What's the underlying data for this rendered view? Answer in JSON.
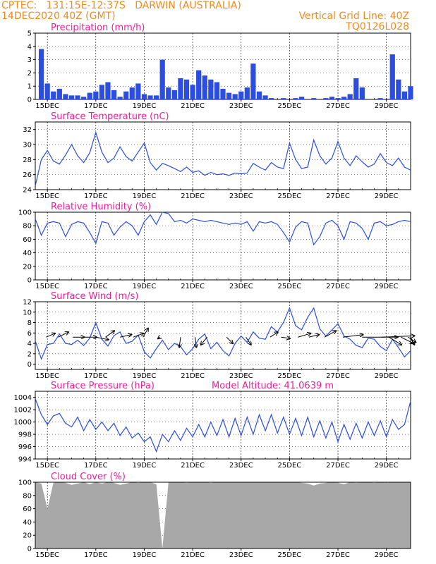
{
  "header": {
    "line1_left": "CPTEC:   131:15E-12:37S   DARWIN (AUSTRALIA)",
    "line2_left": "14DEC2020 40Z (GMT)",
    "line2_right": "Vertical Grid Line: 40Z",
    "line3_right": "TQ0126L028"
  },
  "colors": {
    "header_text": "#f08a24",
    "panel_title": "#ee1e9a",
    "series_line": "#2b4de0",
    "cloud_fill": "#a8a8a8",
    "arrow": "#000000"
  },
  "chart_data": [
    {
      "id": "precipitation",
      "type": "bar",
      "title": "Precipitation (mm/h)",
      "ylim": [
        0,
        5
      ],
      "yticks": [
        0,
        1,
        2,
        3,
        4,
        5
      ],
      "x_ticks": [
        "15DEC",
        "17DEC",
        "19DEC",
        "21DEC",
        "23DEC",
        "25DEC",
        "27DEC",
        "29DEC"
      ],
      "x": [
        0.5,
        1.0,
        1.5,
        2.0,
        2.5,
        3.0,
        3.5,
        4.0,
        4.5,
        5.0,
        5.5,
        6.0,
        6.5,
        7.0,
        7.5,
        8.0,
        8.5,
        9.0,
        9.5,
        10.0,
        10.5,
        11.0,
        11.5,
        12.0,
        12.5,
        13.0,
        13.5,
        14.0,
        14.5,
        15.0,
        15.5,
        16.0,
        16.5,
        17.0,
        17.5,
        18.0,
        18.5,
        19.0,
        19.5,
        20.0,
        20.5,
        21.0,
        21.5,
        22.0,
        22.5,
        23.0,
        23.5,
        24.0,
        24.5,
        25.0,
        25.5,
        26.0,
        26.5,
        27.0,
        27.5,
        28.0,
        28.5,
        29.0,
        29.5,
        30.0,
        30.5,
        31.0
      ],
      "values": [
        3.8,
        1.2,
        0.6,
        0.8,
        0.4,
        0.3,
        0.3,
        0.2,
        0.5,
        0.6,
        1.1,
        1.3,
        0.7,
        0.2,
        0.6,
        0.9,
        1.2,
        0.4,
        0.3,
        0.3,
        3.0,
        0.9,
        0.7,
        1.6,
        1.5,
        1.1,
        2.2,
        1.8,
        1.5,
        1.3,
        0.8,
        0.5,
        0.4,
        0.6,
        0.9,
        2.7,
        0.6,
        0.3,
        0.1,
        0.0,
        0.1,
        0.0,
        0.1,
        0.2,
        0.0,
        0.1,
        0.0,
        0.1,
        0.2,
        0.1,
        0.2,
        0.4,
        1.6,
        0.9,
        0.0,
        0.0,
        0.1,
        0.0,
        3.4,
        1.5,
        0.6,
        1.0
      ]
    },
    {
      "id": "temperature",
      "type": "line",
      "title": "Surface Temperature (nC)",
      "ylim": [
        24,
        33
      ],
      "yticks": [
        24,
        26,
        28,
        30,
        32
      ],
      "x_ticks": [
        "15DEC",
        "17DEC",
        "19DEC",
        "21DEC",
        "23DEC",
        "25DEC",
        "27DEC",
        "29DEC"
      ],
      "x": [
        0.0,
        0.5,
        1.0,
        1.5,
        2.0,
        2.5,
        3.0,
        3.5,
        4.0,
        4.5,
        5.0,
        5.5,
        6.0,
        6.5,
        7.0,
        7.5,
        8.0,
        8.5,
        9.0,
        9.5,
        10.0,
        10.5,
        11.0,
        11.5,
        12.0,
        12.5,
        13.0,
        13.5,
        14.0,
        14.5,
        15.0,
        15.5,
        16.0,
        16.5,
        17.0,
        17.5,
        18.0,
        18.5,
        19.0,
        19.5,
        20.0,
        20.5,
        21.0,
        21.5,
        22.0,
        22.5,
        23.0,
        23.5,
        24.0,
        24.5,
        25.0,
        25.5,
        26.0,
        26.5,
        27.0,
        27.5,
        28.0,
        28.5,
        29.0,
        29.5,
        30.0,
        30.5,
        31.0
      ],
      "values": [
        24.5,
        28.0,
        29.2,
        27.8,
        27.4,
        28.6,
        30.0,
        28.5,
        27.6,
        28.9,
        31.6,
        29.0,
        27.6,
        28.2,
        29.7,
        28.4,
        27.8,
        29.0,
        30.2,
        27.6,
        26.6,
        27.5,
        27.2,
        26.8,
        26.4,
        27.0,
        26.3,
        26.5,
        25.9,
        26.3,
        26.0,
        26.1,
        25.9,
        26.2,
        26.1,
        26.2,
        27.5,
        27.0,
        26.6,
        27.6,
        27.0,
        26.8,
        30.2,
        28.0,
        26.8,
        27.0,
        30.6,
        28.5,
        27.4,
        28.2,
        30.4,
        28.2,
        27.2,
        28.5,
        27.7,
        27.0,
        27.4,
        28.8,
        27.6,
        27.2,
        28.2,
        27.0,
        26.6
      ]
    },
    {
      "id": "humidity",
      "type": "line",
      "title": "Relative Humidity (%)",
      "ylim": [
        0,
        100
      ],
      "yticks": [
        0,
        20,
        40,
        60,
        80,
        100
      ],
      "x_ticks": [
        "15DEC",
        "17DEC",
        "19DEC",
        "21DEC",
        "23DEC",
        "25DEC",
        "27DEC",
        "29DEC"
      ],
      "x": [
        0.0,
        0.5,
        1.0,
        1.5,
        2.0,
        2.5,
        3.0,
        3.5,
        4.0,
        4.5,
        5.0,
        5.5,
        6.0,
        6.5,
        7.0,
        7.5,
        8.0,
        8.5,
        9.0,
        9.5,
        10.0,
        10.5,
        11.0,
        11.5,
        12.0,
        12.5,
        13.0,
        13.5,
        14.0,
        14.5,
        15.0,
        15.5,
        16.0,
        16.5,
        17.0,
        17.5,
        18.0,
        18.5,
        19.0,
        19.5,
        20.0,
        20.5,
        21.0,
        21.5,
        22.0,
        22.5,
        23.0,
        23.5,
        24.0,
        24.5,
        25.0,
        25.5,
        26.0,
        26.5,
        27.0,
        27.5,
        28.0,
        28.5,
        29.0,
        29.5,
        30.0,
        30.5,
        31.0
      ],
      "values": [
        90,
        66,
        84,
        86,
        84,
        64,
        82,
        86,
        84,
        70,
        54,
        86,
        84,
        66,
        78,
        86,
        80,
        66,
        86,
        96,
        82,
        100,
        98,
        86,
        88,
        84,
        90,
        88,
        86,
        88,
        86,
        84,
        82,
        84,
        82,
        86,
        72,
        86,
        84,
        86,
        82,
        70,
        56,
        78,
        86,
        84,
        52,
        64,
        84,
        88,
        80,
        60,
        86,
        84,
        76,
        60,
        84,
        86,
        80,
        82,
        86,
        88,
        86
      ]
    },
    {
      "id": "wind",
      "type": "line",
      "title": "Surface Wind (m/s)",
      "ylim": [
        -1,
        12
      ],
      "yticks": [
        0,
        2,
        4,
        6,
        8,
        10,
        12
      ],
      "x_ticks": [
        "15DEC",
        "17DEC",
        "19DEC",
        "21DEC",
        "23DEC",
        "25DEC",
        "27DEC",
        "29DEC"
      ],
      "x": [
        0.0,
        0.5,
        1.0,
        1.5,
        2.0,
        2.5,
        3.0,
        3.5,
        4.0,
        4.5,
        5.0,
        5.5,
        6.0,
        6.5,
        7.0,
        7.5,
        8.0,
        8.5,
        9.0,
        9.5,
        10.0,
        10.5,
        11.0,
        11.5,
        12.0,
        12.5,
        13.0,
        13.5,
        14.0,
        14.5,
        15.0,
        15.5,
        16.0,
        16.5,
        17.0,
        17.5,
        18.0,
        18.5,
        19.0,
        19.5,
        20.0,
        20.5,
        21.0,
        21.5,
        22.0,
        22.5,
        23.0,
        23.5,
        24.0,
        24.5,
        25.0,
        25.5,
        26.0,
        26.5,
        27.0,
        27.5,
        28.0,
        28.5,
        29.0,
        29.5,
        30.0,
        30.5,
        31.0
      ],
      "values": [
        4.5,
        1.0,
        3.8,
        4.0,
        5.8,
        4.0,
        3.8,
        4.6,
        3.6,
        5.0,
        8.0,
        4.8,
        3.5,
        5.5,
        6.2,
        4.0,
        4.4,
        5.6,
        2.4,
        1.2,
        3.0,
        4.6,
        2.8,
        4.0,
        3.4,
        1.8,
        3.0,
        4.8,
        5.8,
        3.0,
        4.2,
        2.6,
        1.6,
        4.0,
        5.4,
        4.2,
        6.2,
        5.0,
        4.8,
        7.2,
        6.2,
        8.0,
        10.8,
        7.4,
        6.6,
        9.0,
        10.8,
        6.8,
        5.4,
        6.6,
        7.8,
        5.4,
        4.8,
        3.6,
        3.2,
        5.0,
        4.8,
        3.4,
        2.6,
        4.8,
        3.2,
        1.4,
        2.6
      ],
      "arrows": [
        {
          "day": 0.9,
          "u": 3.5,
          "v": 1.5
        },
        {
          "day": 1.9,
          "u": 4.0,
          "v": 2.0
        },
        {
          "day": 3.1,
          "u": 4.5,
          "v": 0.0
        },
        {
          "day": 4.1,
          "u": 4.6,
          "v": 0.0
        },
        {
          "day": 5.0,
          "u": 5.0,
          "v": -1.0
        },
        {
          "day": 5.8,
          "u": 3.5,
          "v": 2.5
        },
        {
          "day": 7.0,
          "u": 4.5,
          "v": 1.0
        },
        {
          "day": 8.1,
          "u": 4.0,
          "v": 1.5
        },
        {
          "day": 8.9,
          "u": 2.0,
          "v": 3.5
        },
        {
          "day": 10.3,
          "u": -0.8,
          "v": -0.6
        },
        {
          "day": 12.0,
          "u": -0.5,
          "v": -4.0
        },
        {
          "day": 13.2,
          "u": 0.5,
          "v": -4.0
        },
        {
          "day": 14.2,
          "u": -2.5,
          "v": -3.0
        },
        {
          "day": 15.8,
          "u": 2.5,
          "v": -2.5
        },
        {
          "day": 17.4,
          "u": 2.0,
          "v": -3.0
        },
        {
          "day": 19.4,
          "u": 3.0,
          "v": 2.0
        },
        {
          "day": 20.3,
          "u": 3.5,
          "v": -0.5
        },
        {
          "day": 21.7,
          "u": 5.0,
          "v": 1.5
        },
        {
          "day": 22.6,
          "u": 4.0,
          "v": 1.0
        },
        {
          "day": 23.9,
          "u": 4.5,
          "v": 2.5
        },
        {
          "day": 25.4,
          "u": 8.0,
          "v": 1.0
        },
        {
          "day": 27.0,
          "u": 14.0,
          "v": 0.0
        },
        {
          "day": 28.6,
          "u": 13.0,
          "v": 0.5
        },
        {
          "day": 29.2,
          "u": 5.0,
          "v": -3.0
        },
        {
          "day": 30.2,
          "u": 5.0,
          "v": -2.5
        },
        {
          "day": 30.8,
          "u": 3.0,
          "v": -2.0
        },
        {
          "day": 31.0,
          "u": 1.5,
          "v": -3.0
        }
      ]
    },
    {
      "id": "pressure",
      "type": "line",
      "title": "Surface Pressure (hPa)",
      "annotation": "Model Altitude: 41.0639 m",
      "ylim": [
        994,
        1005
      ],
      "yticks": [
        994,
        996,
        998,
        1000,
        1002,
        1004
      ],
      "x_ticks": [
        "15DEC",
        "17DEC",
        "19DEC",
        "21DEC",
        "23DEC",
        "25DEC",
        "27DEC",
        "29DEC"
      ],
      "x": [
        0.0,
        0.5,
        1.0,
        1.5,
        2.0,
        2.5,
        3.0,
        3.5,
        4.0,
        4.5,
        5.0,
        5.5,
        6.0,
        6.5,
        7.0,
        7.5,
        8.0,
        8.5,
        9.0,
        9.5,
        10.0,
        10.5,
        11.0,
        11.5,
        12.0,
        12.5,
        13.0,
        13.5,
        14.0,
        14.5,
        15.0,
        15.5,
        16.0,
        16.5,
        17.0,
        17.5,
        18.0,
        18.5,
        19.0,
        19.5,
        20.0,
        20.5,
        21.0,
        21.5,
        22.0,
        22.5,
        23.0,
        23.5,
        24.0,
        24.5,
        25.0,
        25.5,
        26.0,
        26.5,
        27.0,
        27.5,
        28.0,
        28.5,
        29.0,
        29.5,
        30.0,
        30.5,
        31.0
      ],
      "values": [
        1003.8,
        1001.2,
        999.6,
        1001.0,
        1001.4,
        999.8,
        999.2,
        1000.8,
        998.6,
        1000.4,
        998.8,
        1000.0,
        998.6,
        999.8,
        997.8,
        999.2,
        997.4,
        998.2,
        996.8,
        997.6,
        995.2,
        998.0,
        996.8,
        998.6,
        997.0,
        999.0,
        997.6,
        999.6,
        997.6,
        1000.0,
        997.8,
        1000.4,
        997.6,
        1000.6,
        997.8,
        1000.8,
        998.0,
        1001.2,
        998.6,
        1001.2,
        998.2,
        1000.8,
        998.0,
        1000.6,
        997.8,
        1000.8,
        997.6,
        1000.2,
        997.4,
        1000.0,
        996.8,
        999.6,
        997.2,
        999.8,
        997.4,
        1000.0,
        997.8,
        1000.2,
        997.6,
        1000.4,
        998.8,
        999.6,
        1003.4
      ]
    },
    {
      "id": "cloud",
      "type": "area",
      "title": "Cloud Cover (%)",
      "ylim": [
        0,
        100
      ],
      "yticks": [
        0,
        20,
        40,
        60,
        80,
        100
      ],
      "x_ticks": [
        "15DEC",
        "17DEC",
        "19DEC",
        "21DEC",
        "23DEC",
        "25DEC",
        "27DEC",
        "29DEC"
      ],
      "x": [
        0.0,
        0.5,
        1.0,
        1.5,
        2.0,
        2.5,
        3.0,
        3.5,
        4.0,
        4.5,
        5.0,
        5.5,
        6.0,
        6.5,
        7.0,
        7.5,
        8.0,
        8.5,
        9.0,
        9.5,
        10.0,
        10.5,
        11.0,
        11.5,
        12.0,
        12.5,
        13.0,
        13.5,
        14.0,
        14.5,
        15.0,
        15.5,
        16.0,
        16.5,
        17.0,
        17.5,
        18.0,
        18.5,
        19.0,
        19.5,
        20.0,
        20.5,
        21.0,
        21.5,
        22.0,
        22.5,
        23.0,
        23.5,
        24.0,
        24.5,
        25.0,
        25.5,
        26.0,
        26.5,
        27.0,
        27.5,
        28.0,
        28.5,
        29.0,
        29.5,
        30.0,
        30.5,
        31.0
      ],
      "values": [
        100,
        98,
        60,
        99,
        100,
        99,
        96,
        98,
        100,
        97,
        100,
        98,
        100,
        99,
        96,
        98,
        100,
        99,
        100,
        100,
        97,
        0,
        100,
        100,
        100,
        99,
        100,
        100,
        100,
        99,
        100,
        100,
        100,
        100,
        100,
        100,
        100,
        100,
        100,
        100,
        100,
        100,
        100,
        100,
        99,
        98,
        95,
        98,
        99,
        100,
        99,
        97,
        100,
        99,
        100,
        100,
        99,
        100,
        99,
        100,
        100,
        100,
        100
      ]
    }
  ]
}
